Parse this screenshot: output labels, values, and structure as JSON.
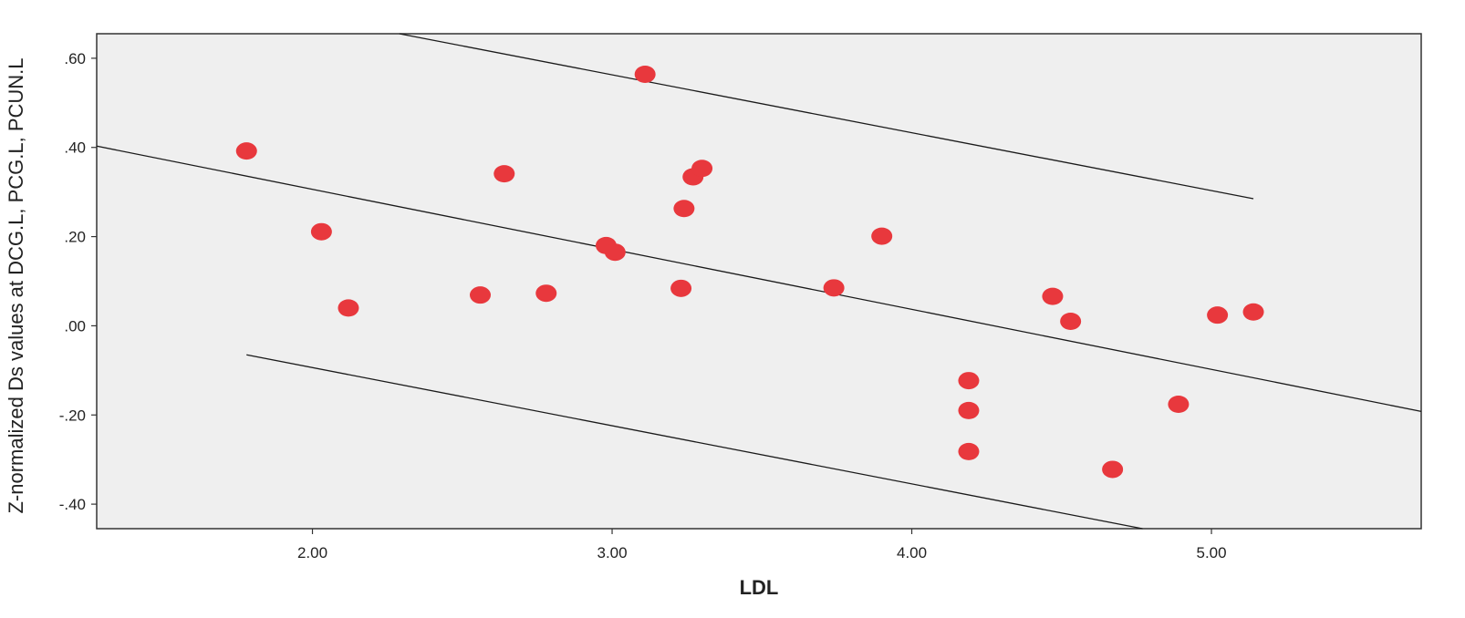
{
  "chart_data": {
    "type": "scatter",
    "title": "",
    "xlabel": "LDL",
    "ylabel": "Z-normalized Ds values at DCG.L, PCG.L, PCUN.L",
    "xlim": [
      1.28,
      5.7
    ],
    "ylim": [
      -0.455,
      0.655
    ],
    "x_ticks": [
      {
        "value": 2.0,
        "label": "2.00"
      },
      {
        "value": 3.0,
        "label": "3.00"
      },
      {
        "value": 4.0,
        "label": "4.00"
      },
      {
        "value": 5.0,
        "label": "5.00"
      }
    ],
    "y_ticks": [
      {
        "value": 0.6,
        "label": ".60"
      },
      {
        "value": 0.4,
        "label": ".40"
      },
      {
        "value": 0.2,
        "label": ".20"
      },
      {
        "value": 0.0,
        "label": ".00"
      },
      {
        "value": -0.2,
        "label": "-.20"
      },
      {
        "value": -0.4,
        "label": "-.40"
      }
    ],
    "grid": false,
    "point_color": "#e8383d",
    "plot_background": "#efefef",
    "points": [
      {
        "x": 1.78,
        "y": 0.392
      },
      {
        "x": 2.03,
        "y": 0.211
      },
      {
        "x": 2.12,
        "y": 0.04
      },
      {
        "x": 2.56,
        "y": 0.069
      },
      {
        "x": 2.64,
        "y": 0.341
      },
      {
        "x": 2.78,
        "y": 0.073
      },
      {
        "x": 2.98,
        "y": 0.18
      },
      {
        "x": 3.01,
        "y": 0.165
      },
      {
        "x": 3.11,
        "y": 0.564
      },
      {
        "x": 3.23,
        "y": 0.084
      },
      {
        "x": 3.24,
        "y": 0.263
      },
      {
        "x": 3.27,
        "y": 0.334
      },
      {
        "x": 3.3,
        "y": 0.353
      },
      {
        "x": 3.74,
        "y": 0.085
      },
      {
        "x": 3.9,
        "y": 0.201
      },
      {
        "x": 4.19,
        "y": -0.123
      },
      {
        "x": 4.19,
        "y": -0.19
      },
      {
        "x": 4.19,
        "y": -0.282
      },
      {
        "x": 4.47,
        "y": 0.066
      },
      {
        "x": 4.53,
        "y": 0.01
      },
      {
        "x": 4.67,
        "y": -0.322
      },
      {
        "x": 4.89,
        "y": -0.176
      },
      {
        "x": 5.02,
        "y": 0.024
      },
      {
        "x": 5.14,
        "y": 0.031
      }
    ],
    "lines": [
      {
        "role": "fit-line",
        "x": [
          1.28,
          5.7
        ],
        "y": [
          0.403,
          -0.192
        ]
      },
      {
        "role": "upper-ci-line",
        "x": [
          2.29,
          5.14
        ],
        "y": [
          0.655,
          0.285
        ]
      },
      {
        "role": "lower-ci-line",
        "x": [
          1.78,
          4.77
        ],
        "y": [
          -0.065,
          -0.455
        ]
      }
    ]
  }
}
